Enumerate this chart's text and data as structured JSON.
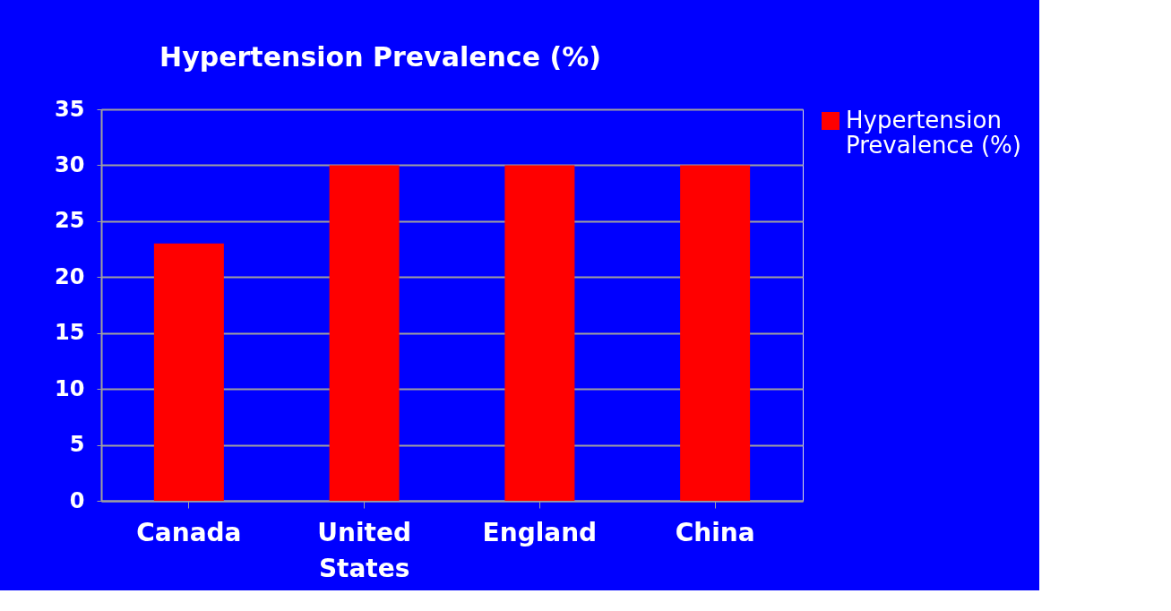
{
  "chart_data": {
    "type": "bar",
    "title": "Hypertension Prevalence (%)",
    "categories": [
      "Canada",
      "United States",
      "England",
      "China"
    ],
    "series": [
      {
        "name": "Hypertension Prevalence (%)",
        "color": "#ff0000",
        "values": [
          23,
          30,
          30,
          30
        ]
      }
    ],
    "ylim": [
      0,
      35
    ],
    "yticks": [
      0,
      5,
      10,
      15,
      20,
      25,
      30,
      35
    ],
    "grid": "y",
    "legend": "right"
  }
}
